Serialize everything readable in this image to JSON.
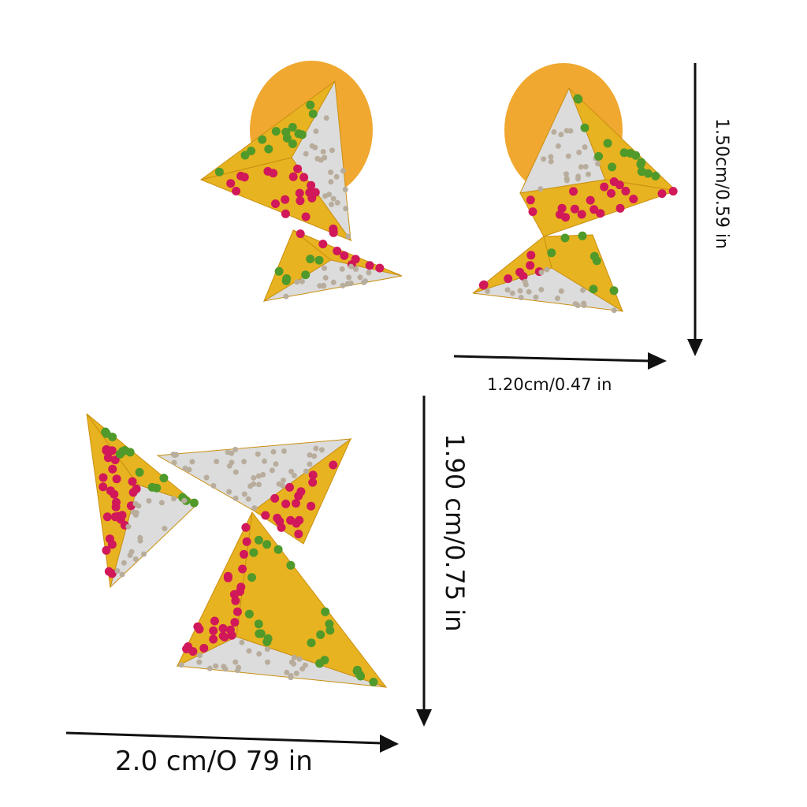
{
  "dimensions": {
    "earring_height": "1.50cm/0.59 in",
    "earring_width": "1.20cm/0.47 in",
    "pendant_height": "1.90 cm/0.75 in",
    "pendant_width": "2.0 cm/O 79 in"
  },
  "colors": {
    "gold": "#e8b320",
    "gold_back": "#f0a830",
    "diamond": "#dcdcdc",
    "ruby": "#d0185a",
    "tsavorite": "#4f9a2a",
    "arrow": "#111111"
  }
}
